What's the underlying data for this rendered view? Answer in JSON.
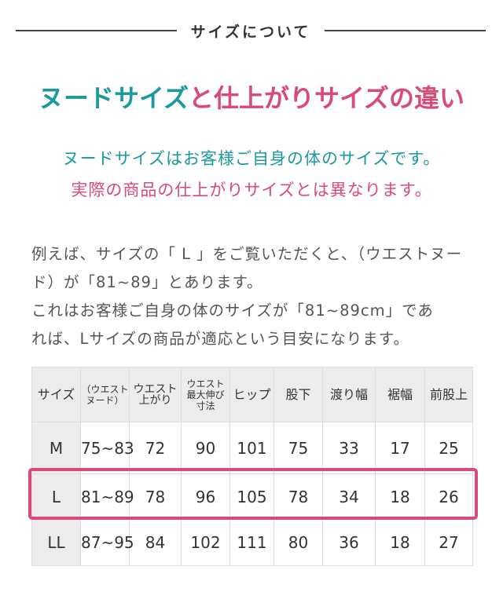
{
  "section_header": "サイズについて",
  "title": {
    "part1": "ヌードサイズ",
    "part2": "と仕上がりサイズの違い"
  },
  "subtitle": {
    "line1": "ヌードサイズはお客様ご自身の体のサイズです。",
    "line2": "実際の商品の仕上がりサイズとは異なります。"
  },
  "paragraph": {
    "line1": "例えば、サイズの「 L 」をご覧いただくと、（ウエストヌー",
    "line2": "ド）が「81~89」とあります。",
    "line3": "これはお客様ご自身の体のサイズが「81~89cm」であ",
    "line4": "れば、Lサイズの商品が適応という目安になります。"
  },
  "table": {
    "headers": [
      "サイズ",
      "（ウエスト ヌード）",
      "ウエスト 上がり",
      "ウエスト 最大伸び 寸法",
      "ヒップ",
      "股下",
      "渡り幅",
      "裾幅",
      "前股上"
    ],
    "rows": [
      [
        "M",
        "75~83",
        "72",
        "90",
        "101",
        "75",
        "33",
        "17",
        "25"
      ],
      [
        "L",
        "81~89",
        "78",
        "96",
        "105",
        "78",
        "34",
        "18",
        "26"
      ],
      [
        "LL",
        "87~95",
        "84",
        "102",
        "111",
        "80",
        "36",
        "18",
        "27"
      ]
    ],
    "highlighted_row": "L"
  },
  "colors": {
    "teal": "#1a9aa0",
    "pink": "#d94a76"
  }
}
